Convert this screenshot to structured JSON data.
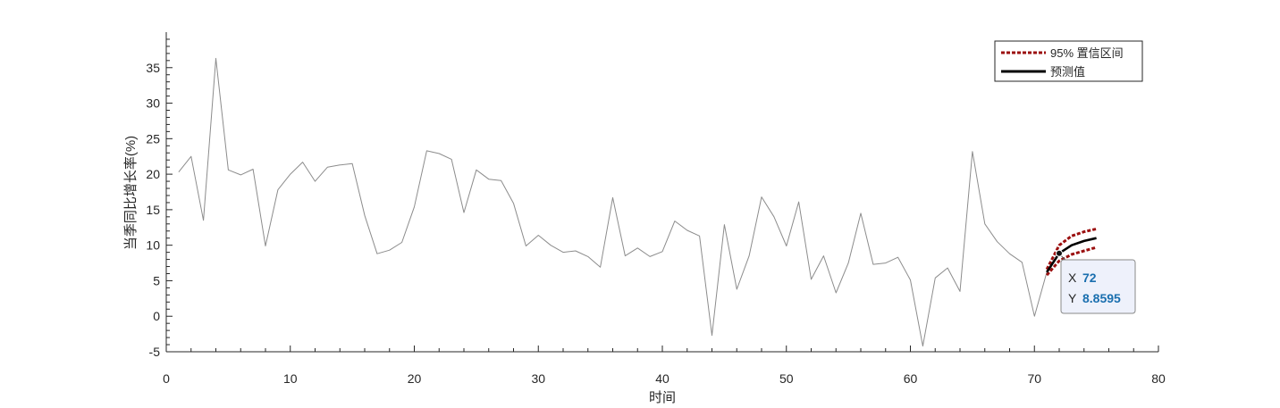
{
  "chart_data": {
    "type": "line",
    "xlabel": "时间",
    "ylabel": "当季同比增长率(%)",
    "xlim": [
      0,
      80
    ],
    "ylim": [
      -5,
      40
    ],
    "xticks": [
      0,
      10,
      20,
      30,
      40,
      50,
      60,
      70,
      80
    ],
    "yticks": [
      -5,
      0,
      5,
      10,
      15,
      20,
      25,
      30,
      35
    ],
    "grid": false,
    "legend_position": "top-right",
    "series": [
      {
        "kind": "history",
        "color": "#8c8c8c",
        "x": [
          1,
          2,
          3,
          4,
          5,
          6,
          7,
          8,
          9,
          10,
          11,
          12,
          13,
          14,
          15,
          16,
          17,
          18,
          19,
          20,
          21,
          22,
          23,
          24,
          25,
          26,
          27,
          28,
          29,
          30,
          31,
          32,
          33,
          34,
          35,
          36,
          37,
          38,
          39,
          40,
          41,
          42,
          43,
          44,
          45,
          46,
          47,
          48,
          49,
          50,
          51,
          52,
          53,
          54,
          55,
          56,
          57,
          58,
          59,
          60,
          61,
          62,
          63,
          64,
          65,
          66,
          67,
          68,
          69,
          70,
          71
        ],
        "y": [
          20.3,
          22.5,
          13.5,
          36.3,
          20.6,
          19.9,
          20.7,
          9.9,
          17.8,
          20.0,
          21.7,
          19.0,
          21.0,
          21.3,
          21.5,
          14.2,
          8.8,
          9.3,
          10.4,
          15.4,
          23.3,
          22.9,
          22.1,
          14.6,
          20.6,
          19.3,
          19.1,
          15.9,
          9.9,
          11.4,
          10.0,
          9.0,
          9.2,
          8.4,
          6.9,
          16.7,
          8.5,
          9.6,
          8.4,
          9.1,
          13.4,
          12.1,
          11.3,
          -2.7,
          12.9,
          3.8,
          8.5,
          16.8,
          14.0,
          9.9,
          16.1,
          5.2,
          8.5,
          3.3,
          7.5,
          14.5,
          7.3,
          7.5,
          8.3,
          5.1,
          -4.2,
          5.4,
          6.8,
          3.5,
          23.2,
          13.0,
          10.5,
          8.8,
          7.6,
          0.0,
          6.2
        ]
      },
      {
        "kind": "ci-upper",
        "name": "95% 置信区间",
        "color": "#9b0f0f",
        "x": [
          71,
          72,
          73,
          74,
          75
        ],
        "y": [
          6.6,
          10.0,
          11.3,
          11.9,
          12.3
        ]
      },
      {
        "kind": "ci-lower",
        "color": "#9b0f0f",
        "x": [
          71,
          72,
          73,
          74,
          75
        ],
        "y": [
          5.8,
          7.8,
          8.7,
          9.2,
          9.7
        ]
      },
      {
        "kind": "forecast",
        "name": "预测值",
        "color": "#000000",
        "x": [
          71,
          72,
          73,
          74,
          75
        ],
        "y": [
          6.2,
          8.8595,
          10.0,
          10.6,
          11.0
        ]
      }
    ],
    "datatip": {
      "x_key": "X",
      "x_value": "72",
      "y_key": "Y",
      "y_value": "8.8595",
      "point_x": 72,
      "point_y": 8.8595
    }
  }
}
